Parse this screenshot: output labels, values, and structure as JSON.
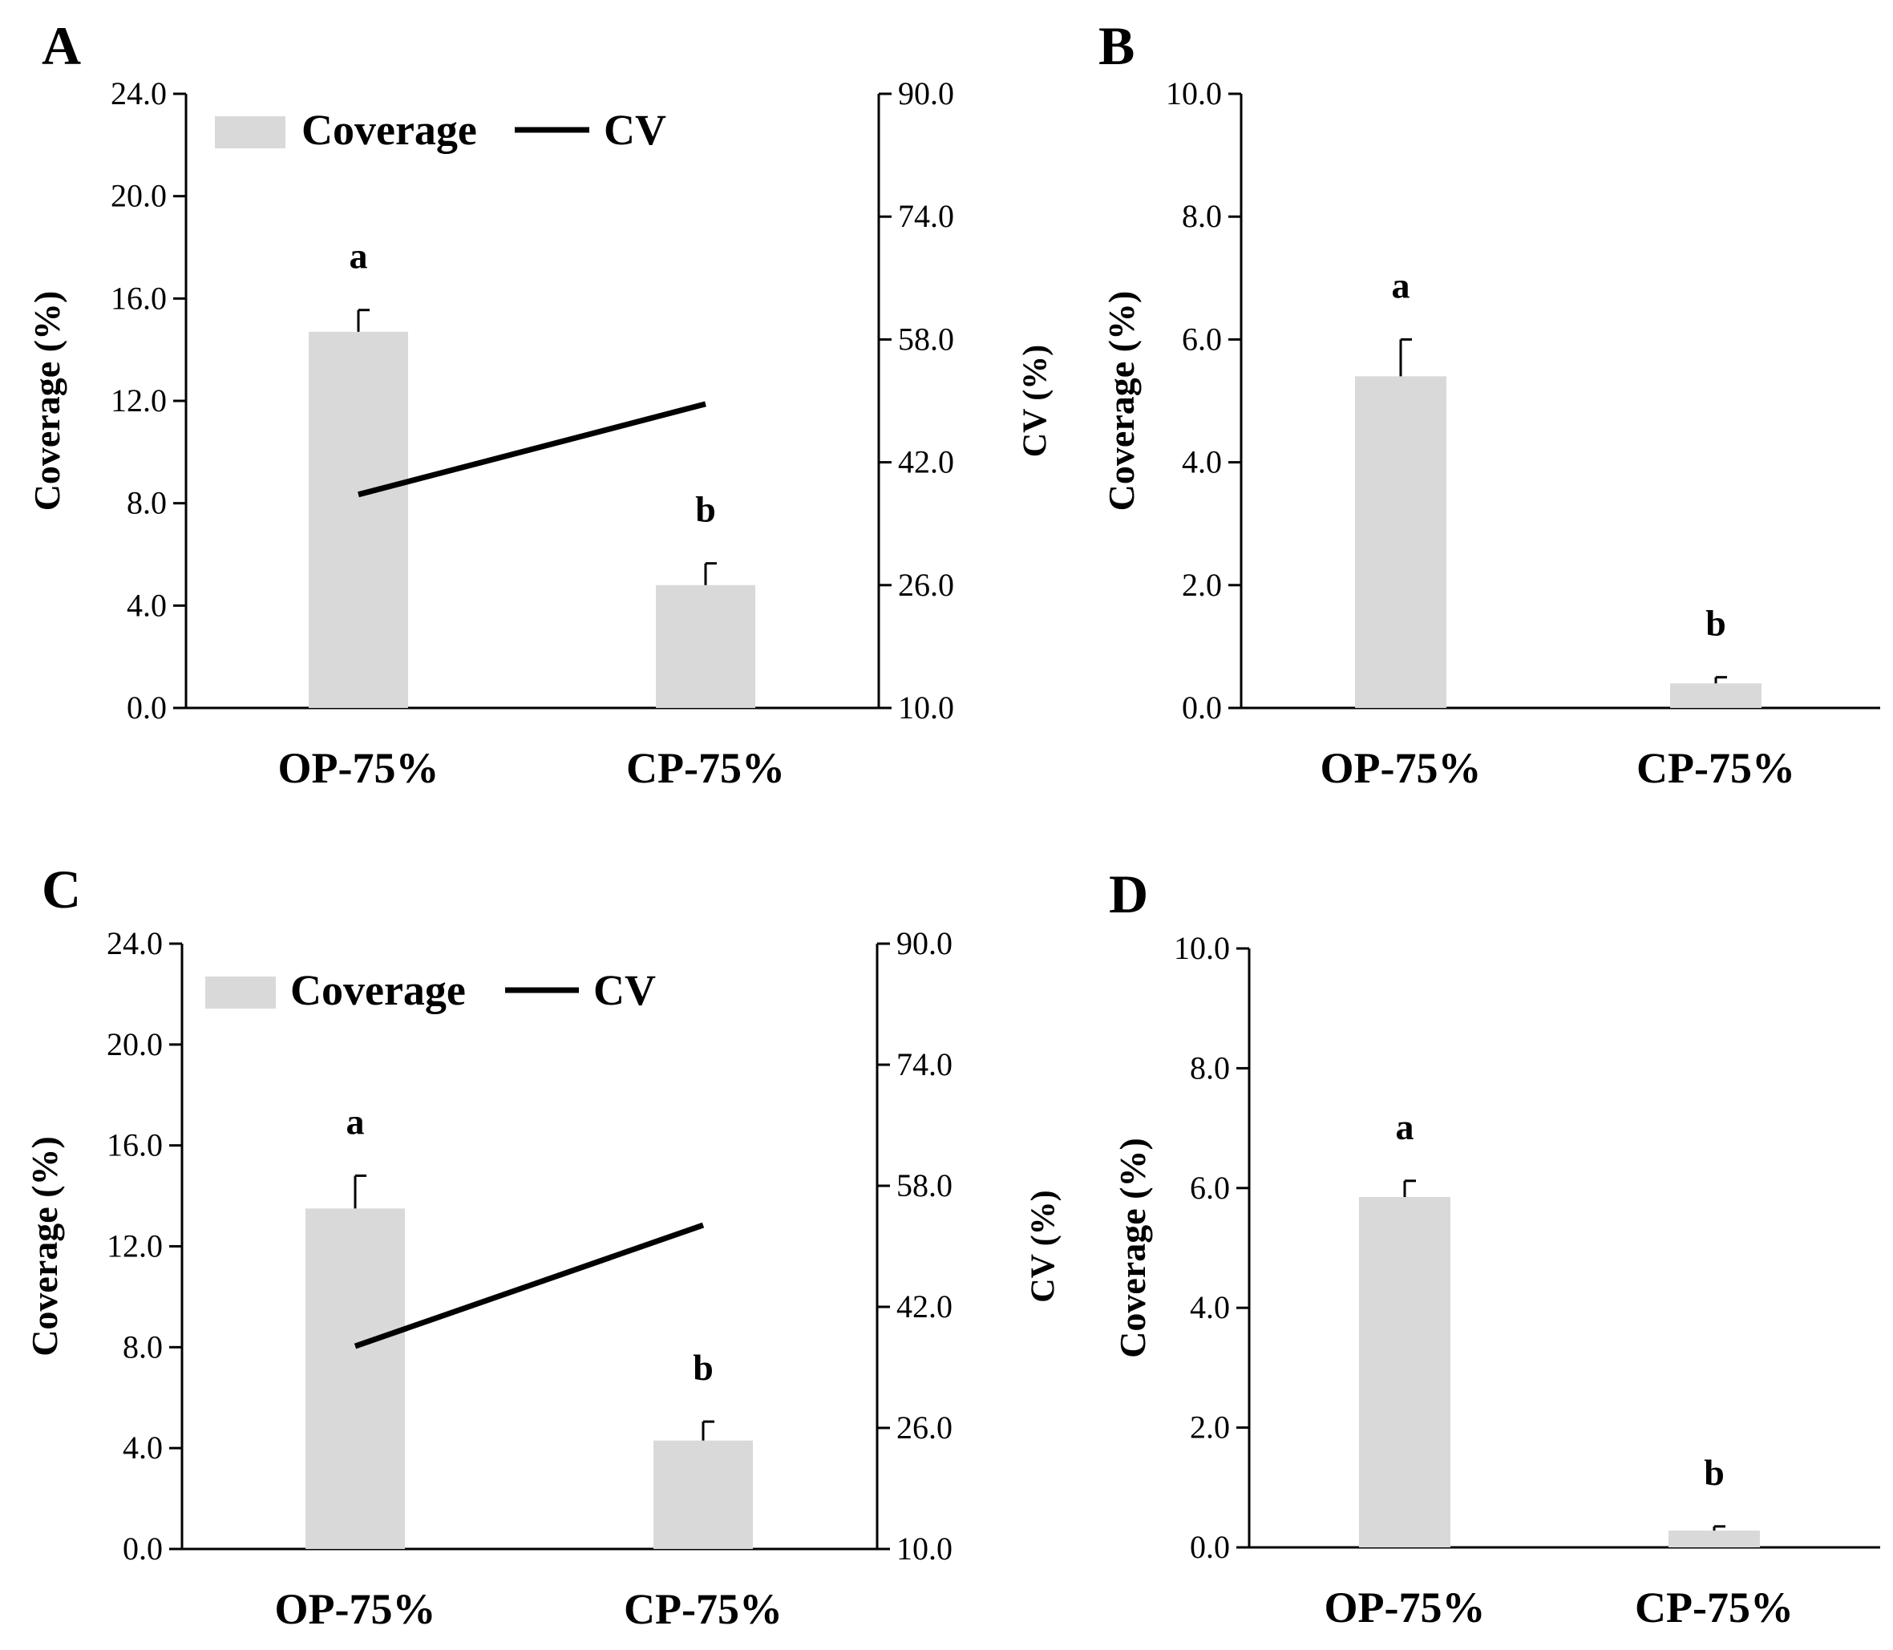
{
  "bar_color": "#d9d9d9",
  "line_color": "#000000",
  "chart_data": [
    {
      "panel": "A",
      "type": "bar",
      "categories": [
        "OP-75%",
        "CP-75%"
      ],
      "series": [
        {
          "name": "Coverage",
          "values": [
            14.7,
            4.8
          ],
          "errors": [
            0.85,
            0.85
          ],
          "axis": "left"
        },
        {
          "name": "CV",
          "type": "line",
          "values": [
            37.8,
            49.6
          ],
          "axis": "right"
        }
      ],
      "letters": [
        "a",
        "b"
      ],
      "ylabel": "Coverage (%)",
      "y2label": "CV (%)",
      "ylim": [
        0,
        24
      ],
      "y2lim": [
        10,
        90
      ],
      "yticks": [
        "0.0",
        "4.0",
        "8.0",
        "12.0",
        "16.0",
        "20.0",
        "24.0"
      ],
      "y2ticks": [
        "10.0",
        "26.0",
        "42.0",
        "58.0",
        "74.0",
        "90.0"
      ],
      "legend": "top-left",
      "grid": false
    },
    {
      "panel": "B",
      "type": "bar",
      "categories": [
        "OP-75%",
        "CP-75%"
      ],
      "series": [
        {
          "name": "Coverage",
          "values": [
            5.4,
            0.4
          ],
          "errors": [
            0.6,
            0.1
          ],
          "axis": "left"
        }
      ],
      "letters": [
        "a",
        "b"
      ],
      "ylabel": "Coverage (%)",
      "ylim": [
        0,
        10
      ],
      "yticks": [
        "0.0",
        "2.0",
        "4.0",
        "6.0",
        "8.0",
        "10.0"
      ],
      "grid": false
    },
    {
      "panel": "C",
      "type": "bar",
      "categories": [
        "OP-75%",
        "CP-75%"
      ],
      "series": [
        {
          "name": "Coverage",
          "values": [
            13.5,
            4.3
          ],
          "errors": [
            1.3,
            0.75
          ],
          "axis": "left"
        },
        {
          "name": "CV",
          "type": "line",
          "values": [
            36.8,
            52.8
          ],
          "axis": "right"
        }
      ],
      "letters": [
        "a",
        "b"
      ],
      "ylabel": "Coverage (%)",
      "y2label": "CV (%)",
      "ylim": [
        0,
        24
      ],
      "y2lim": [
        10,
        90
      ],
      "yticks": [
        "0.0",
        "4.0",
        "8.0",
        "12.0",
        "16.0",
        "20.0",
        "24.0"
      ],
      "y2ticks": [
        "10.0",
        "26.0",
        "42.0",
        "58.0",
        "74.0",
        "90.0"
      ],
      "legend": "top-left",
      "grid": false
    },
    {
      "panel": "D",
      "type": "bar",
      "categories": [
        "OP-75%",
        "CP-75%"
      ],
      "series": [
        {
          "name": "Coverage",
          "values": [
            5.85,
            0.28
          ],
          "errors": [
            0.27,
            0.07
          ],
          "axis": "left"
        }
      ],
      "letters": [
        "a",
        "b"
      ],
      "ylabel": "Coverage (%)",
      "ylim": [
        0,
        10
      ],
      "yticks": [
        "0.0",
        "2.0",
        "4.0",
        "6.0",
        "8.0",
        "10.0"
      ],
      "grid": false
    }
  ]
}
